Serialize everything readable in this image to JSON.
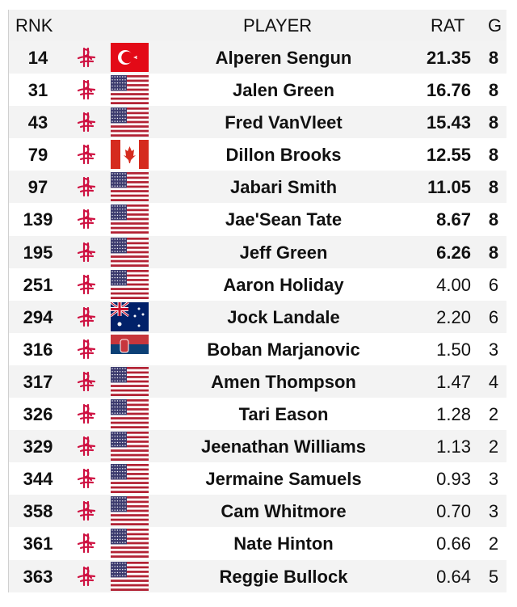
{
  "header": {
    "rank": "RNK",
    "player": "PLAYER",
    "rating": "RAT",
    "games": "G"
  },
  "colors": {
    "team": "#ce1141",
    "header_bg": "#f2f2f2",
    "alt_row": "#f3f3f3"
  },
  "rows": [
    {
      "rank": "14",
      "team_icon": "rockets-logo-icon",
      "flag": "turkey",
      "name": "Alperen Sengun",
      "rating": "21.35",
      "games": "8"
    },
    {
      "rank": "31",
      "team_icon": "rockets-logo-icon",
      "flag": "usa",
      "name": "Jalen Green",
      "rating": "16.76",
      "games": "8"
    },
    {
      "rank": "43",
      "team_icon": "rockets-logo-icon",
      "flag": "usa",
      "name": "Fred VanVleet",
      "rating": "15.43",
      "games": "8"
    },
    {
      "rank": "79",
      "team_icon": "rockets-logo-icon",
      "flag": "canada",
      "name": "Dillon Brooks",
      "rating": "12.55",
      "games": "8"
    },
    {
      "rank": "97",
      "team_icon": "rockets-logo-icon",
      "flag": "usa",
      "name": "Jabari Smith",
      "rating": "11.05",
      "games": "8"
    },
    {
      "rank": "139",
      "team_icon": "rockets-logo-icon",
      "flag": "usa",
      "name": "Jae'Sean Tate",
      "rating": "8.67",
      "games": "8"
    },
    {
      "rank": "195",
      "team_icon": "rockets-logo-icon",
      "flag": "usa",
      "name": "Jeff Green",
      "rating": "6.26",
      "games": "8"
    },
    {
      "rank": "251",
      "team_icon": "rockets-logo-icon",
      "flag": "usa",
      "name": "Aaron Holiday",
      "rating": "4.00",
      "games": "6"
    },
    {
      "rank": "294",
      "team_icon": "rockets-logo-icon",
      "flag": "australia",
      "name": "Jock Landale",
      "rating": "2.20",
      "games": "6"
    },
    {
      "rank": "316",
      "team_icon": "rockets-logo-icon",
      "flag": "serbia",
      "name": "Boban Marjanovic",
      "rating": "1.50",
      "games": "3"
    },
    {
      "rank": "317",
      "team_icon": "rockets-logo-icon",
      "flag": "usa",
      "name": "Amen Thompson",
      "rating": "1.47",
      "games": "4"
    },
    {
      "rank": "326",
      "team_icon": "rockets-logo-icon",
      "flag": "usa",
      "name": "Tari Eason",
      "rating": "1.28",
      "games": "2"
    },
    {
      "rank": "329",
      "team_icon": "rockets-logo-icon",
      "flag": "usa",
      "name": "Jeenathan Williams",
      "rating": "1.13",
      "games": "2"
    },
    {
      "rank": "344",
      "team_icon": "rockets-logo-icon",
      "flag": "usa",
      "name": "Jermaine Samuels",
      "rating": "0.93",
      "games": "3"
    },
    {
      "rank": "358",
      "team_icon": "rockets-logo-icon",
      "flag": "usa",
      "name": "Cam Whitmore",
      "rating": "0.70",
      "games": "3"
    },
    {
      "rank": "361",
      "team_icon": "rockets-logo-icon",
      "flag": "usa",
      "name": "Nate Hinton",
      "rating": "0.66",
      "games": "2"
    },
    {
      "rank": "363",
      "team_icon": "rockets-logo-icon",
      "flag": "usa",
      "name": "Reggie Bullock",
      "rating": "0.64",
      "games": "5"
    }
  ]
}
